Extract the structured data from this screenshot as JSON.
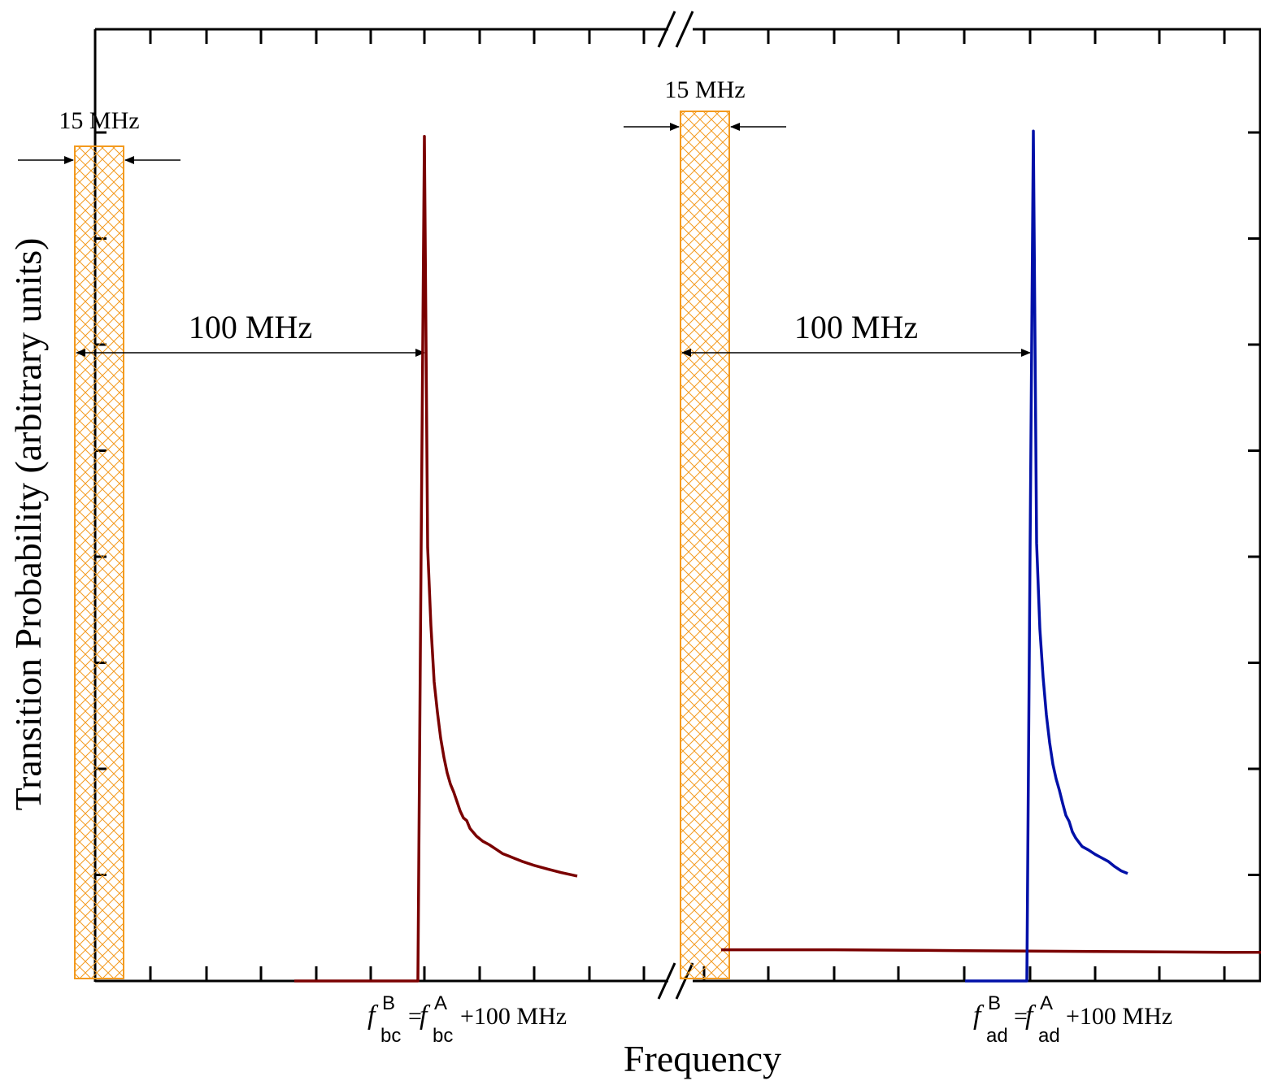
{
  "chart_data": {
    "type": "line",
    "xlabel": "Frequency",
    "ylabel": "Transition Probability (arbitrary units)",
    "axis_break": true,
    "ylim": [
      0,
      1
    ],
    "colors": {
      "bc": "#7a0000",
      "ad": "#0010a8",
      "band": "#f39a1e",
      "axis": "#000000"
    },
    "panels": [
      {
        "id": "left",
        "xlim": [
          -150,
          20
        ],
        "bands": [
          {
            "center": -100,
            "width": 15,
            "width_label": "15 MHz"
          }
        ],
        "spacing": {
          "from": -100,
          "to": 0,
          "label": "100 MHz"
        },
        "tick_label": {
          "f": "f",
          "sub1": "bc",
          "sup1": "B",
          "eq": "=",
          "sup2": "A",
          "sub2": "bc",
          "tail": "+100 MHz",
          "at": 0
        },
        "series": [
          {
            "key": "bc",
            "x": [
              -40,
              -2,
              -1,
              0,
              1,
              2,
              3,
              4,
              5,
              6,
              7,
              8,
              9,
              10,
              11,
              12,
              13,
              14,
              16,
              18,
              20,
              22,
              24,
              26,
              28,
              30,
              34,
              38,
              42,
              47
            ],
            "y": [
              0.0,
              0.0,
              0.5,
              0.974,
              0.5,
              0.41,
              0.345,
              0.31,
              0.28,
              0.258,
              0.24,
              0.227,
              0.218,
              0.207,
              0.196,
              0.188,
              0.185,
              0.176,
              0.167,
              0.161,
              0.157,
              0.152,
              0.147,
              0.144,
              0.141,
              0.138,
              0.133,
              0.129,
              0.125,
              0.121
            ]
          }
        ]
      },
      {
        "id": "right",
        "xlim": [
          -95,
          80
        ],
        "bands": [
          {
            "center": -100,
            "width": 15,
            "width_label": "15 MHz"
          }
        ],
        "spacing": {
          "from": -100,
          "to": 0,
          "label": "100 MHz"
        },
        "tick_label": {
          "f": "f",
          "sub1": "ad",
          "sup1": "B",
          "eq": "=",
          "sup2": "A",
          "sub2": "ad",
          "tail": "+100 MHz",
          "at": 0
        },
        "series": [
          {
            "key": "bc",
            "x": [
              -95,
              -60,
              -20,
              20,
              60,
              80
            ],
            "y": [
              0.036,
              0.036,
              0.035,
              0.034,
              0.033,
              0.033
            ]
          },
          {
            "key": "ad",
            "x": [
              -20,
              -1,
              0,
              1,
              2,
              3,
              4,
              5,
              6,
              7,
              8,
              9,
              10,
              11,
              12,
              13,
              14,
              15,
              16,
              18,
              20,
              22,
              24,
              26,
              28,
              30
            ],
            "y": [
              0.0,
              0.0,
              0.5,
              0.98,
              0.505,
              0.406,
              0.35,
              0.307,
              0.275,
              0.25,
              0.233,
              0.22,
              0.205,
              0.191,
              0.184,
              0.172,
              0.165,
              0.16,
              0.155,
              0.151,
              0.146,
              0.142,
              0.138,
              0.132,
              0.127,
              0.124
            ]
          }
        ]
      }
    ]
  }
}
